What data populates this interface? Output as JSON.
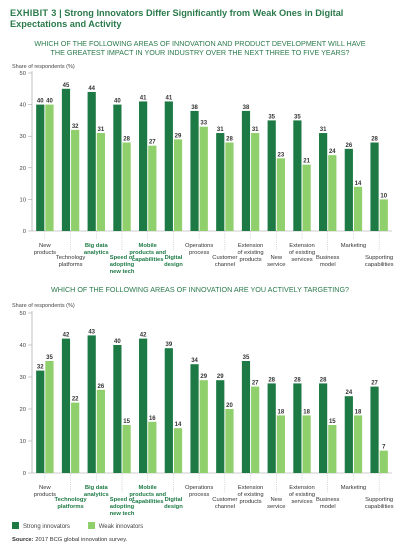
{
  "header": {
    "exhibit": "EXHIBIT 3",
    "title": "Strong Innovators Differ Significantly from Weak Ones in Digital Expectations and Activity"
  },
  "colors": {
    "strong": "#1d7a45",
    "weak": "#8fcf6c",
    "title": "#2a7a4b",
    "highlight": "#1d7a45",
    "text": "#333333",
    "grid": "#bbbbbb"
  },
  "chart_data": [
    {
      "type": "bar",
      "title": "WHICH OF THE FOLLOWING AREAS OF INNOVATION AND PRODUCT DEVELOPMENT WILL HAVE THE GREATEST IMPACT IN YOUR INDUSTRY OVER THE NEXT THREE TO FIVE YEARS?",
      "ylabel": "Share of respondents (%)",
      "ylim": [
        0,
        50
      ],
      "yticks": [
        0,
        10,
        20,
        30,
        40,
        50
      ],
      "grid": false,
      "categories": [
        "New products",
        "Technology platforms",
        "Big data analytics",
        "Speed of adopting new tech",
        "Mobile products and capabilities",
        "Digital design",
        "Operations process",
        "Customer channel",
        "Extension of existing products",
        "New service",
        "Extension of existing services",
        "Business model",
        "Marketing",
        "Supporting capabilities"
      ],
      "highlighted": [
        false,
        false,
        true,
        true,
        true,
        true,
        false,
        false,
        false,
        false,
        false,
        false,
        false,
        false
      ],
      "series": [
        {
          "name": "Strong innovators",
          "values": [
            40,
            45,
            44,
            40,
            41,
            41,
            38,
            31,
            38,
            35,
            35,
            31,
            26,
            28
          ]
        },
        {
          "name": "Weak innovators",
          "values": [
            40,
            32,
            31,
            28,
            27,
            29,
            33,
            28,
            31,
            23,
            21,
            24,
            14,
            10
          ]
        }
      ]
    },
    {
      "type": "bar",
      "title": "WHICH OF THE FOLLOWING AREAS OF INNOVATION ARE YOU ACTIVELY TARGETING?",
      "ylabel": "Share of respondents (%)",
      "ylim": [
        0,
        50
      ],
      "yticks": [
        0,
        10,
        20,
        30,
        40,
        50
      ],
      "grid": false,
      "categories": [
        "New products",
        "Technology platforms",
        "Big data analytics",
        "Speed of adopting new tech",
        "Mobile products and capabilities",
        "Digital design",
        "Operations process",
        "Customer channel",
        "Extension of existing products",
        "New service",
        "Extension of existing services",
        "Business model",
        "Marketing",
        "Supporting capabilities"
      ],
      "highlighted": [
        false,
        true,
        true,
        true,
        true,
        true,
        false,
        false,
        false,
        false,
        false,
        false,
        false,
        false
      ],
      "series": [
        {
          "name": "Strong innovators",
          "values": [
            32,
            42,
            43,
            40,
            42,
            39,
            34,
            29,
            35,
            28,
            28,
            28,
            24,
            27
          ]
        },
        {
          "name": "Weak innovators",
          "values": [
            35,
            22,
            26,
            15,
            16,
            14,
            29,
            20,
            27,
            18,
            18,
            15,
            18,
            7
          ]
        }
      ]
    }
  ],
  "legend": {
    "strong": "Strong innovators",
    "weak": "Weak innovators"
  },
  "source": {
    "label": "Source:",
    "text": "2017 BCG global innovation survey."
  }
}
